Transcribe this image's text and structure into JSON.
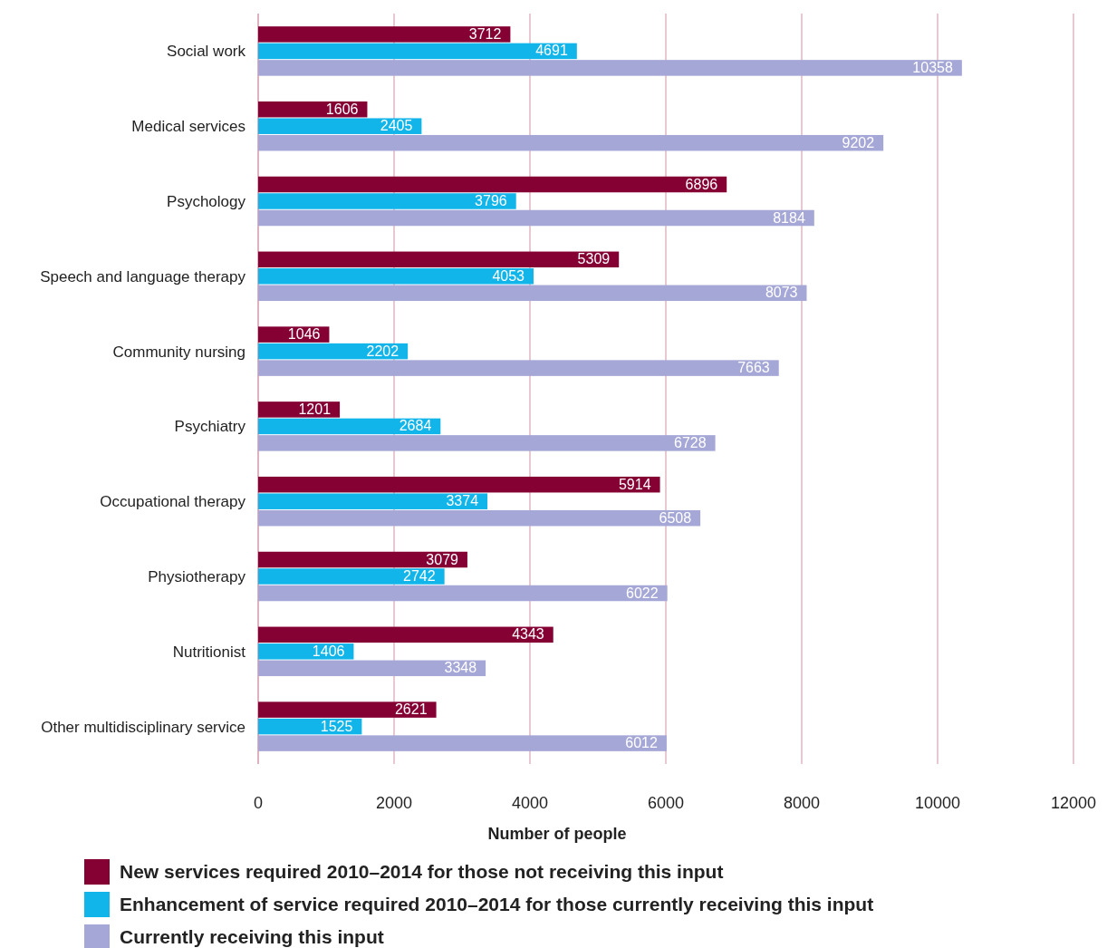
{
  "chart_data": {
    "type": "bar",
    "orientation": "horizontal",
    "categories": [
      "Social work",
      "Medical services",
      "Psychology",
      "Speech and language therapy",
      "Community nursing",
      "Psychiatry",
      "Occupational therapy",
      "Physiotherapy",
      "Nutritionist",
      "Other multidisciplinary service"
    ],
    "series": [
      {
        "name": "New services required 2010–2014 for those not receiving this input",
        "color": "#850033",
        "values": [
          3712,
          1606,
          6896,
          5309,
          1046,
          1201,
          5914,
          3079,
          4343,
          2621
        ]
      },
      {
        "name": "Enhancement of service required 2010–2014 for those currently receiving this input",
        "color": "#12b5ea",
        "values": [
          4691,
          2405,
          3796,
          4053,
          2202,
          2684,
          3374,
          2742,
          1406,
          1525
        ]
      },
      {
        "name": "Currently receiving this input",
        "color": "#a5a7d6",
        "values": [
          10358,
          9202,
          8184,
          8073,
          7663,
          6728,
          6508,
          6022,
          3348,
          6012
        ]
      }
    ],
    "xlim": [
      0,
      12000
    ],
    "xticks": [
      0,
      2000,
      4000,
      6000,
      8000,
      10000,
      12000
    ],
    "xlabel": "Number of people",
    "grid": "x",
    "legend": "bottom",
    "data_labels": true
  }
}
